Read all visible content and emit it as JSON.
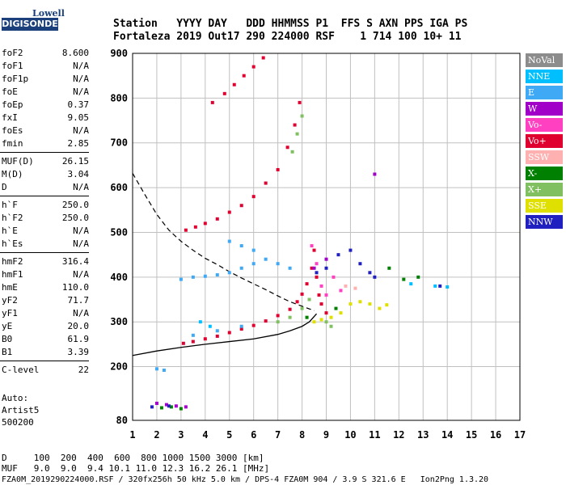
{
  "logo": {
    "top": "Lowell",
    "bottom": "DIGISONDE"
  },
  "header": {
    "line1": "Station   YYYY DAY   DDD HHMMSS P1  FFS S AXN PPS IGA PS",
    "line2": "Fortaleza 2019 Out17 290 224000 RSF    1 714 100 10+ 11"
  },
  "params": [
    {
      "k": "foF2",
      "v": "8.600"
    },
    {
      "k": "foF1",
      "v": "N/A"
    },
    {
      "k": "foF1p",
      "v": "N/A"
    },
    {
      "k": "foE",
      "v": "N/A"
    },
    {
      "k": "foEp",
      "v": "0.37"
    },
    {
      "k": "fxI",
      "v": "9.05"
    },
    {
      "k": "foEs",
      "v": "N/A"
    },
    {
      "k": "fmin",
      "v": "2.85"
    },
    {
      "k": "MUF(D)",
      "v": "26.15"
    },
    {
      "k": "M(D)",
      "v": "3.04"
    },
    {
      "k": "D",
      "v": "N/A"
    },
    {
      "k": "h`F",
      "v": "250.0"
    },
    {
      "k": "h`F2",
      "v": "250.0"
    },
    {
      "k": "h`E",
      "v": "N/A"
    },
    {
      "k": "h`Es",
      "v": "N/A"
    },
    {
      "k": "hmF2",
      "v": "316.4"
    },
    {
      "k": "hmF1",
      "v": "N/A"
    },
    {
      "k": "hmE",
      "v": "110.0"
    },
    {
      "k": "yF2",
      "v": "71.7"
    },
    {
      "k": "yF1",
      "v": "N/A"
    },
    {
      "k": "yE",
      "v": "20.0"
    },
    {
      "k": "B0",
      "v": "61.9"
    },
    {
      "k": "B1",
      "v": "3.39"
    },
    {
      "k": "C-level",
      "v": "22"
    }
  ],
  "auto": {
    "l1": "Auto:",
    "l2": "Artist5",
    "l3": "500200"
  },
  "legend": [
    {
      "label": "NoVal",
      "color": "#8c8c8c"
    },
    {
      "label": "NNE",
      "color": "#00bfff"
    },
    {
      "label": "E",
      "color": "#3fa9f5"
    },
    {
      "label": "W",
      "color": "#a000c8"
    },
    {
      "label": "Vo-",
      "color": "#ff40c0"
    },
    {
      "label": "Vo+",
      "color": "#e00030"
    },
    {
      "label": "SSW",
      "color": "#ffb0b0"
    },
    {
      "label": "X-",
      "color": "#008000"
    },
    {
      "label": "X+",
      "color": "#80c060"
    },
    {
      "label": "SSE",
      "color": "#e0e000"
    },
    {
      "label": "NNW",
      "color": "#2020c0"
    }
  ],
  "footer": {
    "l1": "D     100  200  400  600  800 1000 1500 3000 [km]",
    "l2": "MUF   9.0  9.0  9.4 10.1 11.0 12.3 16.2 26.1 [MHz]",
    "l3": "FZA0M_2019290224000.RSF / 320fx256h 50 kHz 5.0 km / DPS-4 FZA0M 904 / 3.9 S 321.6 E   Ion2Png 1.3.20"
  },
  "chart_data": {
    "type": "scatter",
    "xlim": [
      1,
      17
    ],
    "ylim": [
      80,
      900
    ],
    "xticks": [
      1,
      2,
      3,
      4,
      5,
      6,
      7,
      8,
      9,
      10,
      11,
      12,
      13,
      14,
      15,
      16,
      17
    ],
    "yticks": [
      80,
      200,
      300,
      400,
      500,
      600,
      700,
      800,
      900
    ],
    "grid": true,
    "legend_position": "right",
    "series": [
      {
        "name": "Vo+",
        "color": "#e00030",
        "points": [
          [
            3.1,
            252
          ],
          [
            3.5,
            256
          ],
          [
            4.0,
            262
          ],
          [
            4.5,
            268
          ],
          [
            5.0,
            276
          ],
          [
            5.5,
            284
          ],
          [
            6.0,
            292
          ],
          [
            6.5,
            302
          ],
          [
            7.0,
            314
          ],
          [
            7.5,
            328
          ],
          [
            7.8,
            345
          ],
          [
            8.0,
            362
          ],
          [
            8.2,
            385
          ],
          [
            8.4,
            420
          ],
          [
            8.5,
            460
          ],
          [
            3.2,
            505
          ],
          [
            3.6,
            512
          ],
          [
            4.0,
            520
          ],
          [
            4.5,
            530
          ],
          [
            5.0,
            545
          ],
          [
            5.5,
            560
          ],
          [
            6.0,
            580
          ],
          [
            6.5,
            610
          ],
          [
            7.0,
            640
          ],
          [
            7.4,
            690
          ],
          [
            7.7,
            740
          ],
          [
            7.9,
            790
          ],
          [
            4.3,
            790
          ],
          [
            4.8,
            810
          ],
          [
            5.2,
            830
          ],
          [
            5.6,
            850
          ],
          [
            6.0,
            870
          ],
          [
            6.4,
            890
          ],
          [
            8.6,
            400
          ],
          [
            8.7,
            360
          ],
          [
            8.8,
            340
          ],
          [
            9.0,
            320
          ]
        ]
      },
      {
        "name": "Vo-",
        "color": "#ff40c0",
        "points": [
          [
            8.4,
            470
          ],
          [
            8.6,
            430
          ],
          [
            8.8,
            380
          ],
          [
            9.0,
            360
          ],
          [
            9.3,
            400
          ],
          [
            9.6,
            370
          ]
        ]
      },
      {
        "name": "X+",
        "color": "#80c060",
        "points": [
          [
            7.0,
            300
          ],
          [
            7.5,
            310
          ],
          [
            8.0,
            330
          ],
          [
            8.3,
            350
          ],
          [
            7.6,
            680
          ],
          [
            7.8,
            720
          ],
          [
            8.0,
            760
          ],
          [
            9.0,
            300
          ],
          [
            9.2,
            290
          ]
        ]
      },
      {
        "name": "X-",
        "color": "#008000",
        "points": [
          [
            2.2,
            108
          ],
          [
            2.6,
            110
          ],
          [
            3.0,
            106
          ],
          [
            8.2,
            310
          ],
          [
            9.4,
            330
          ],
          [
            11.6,
            420
          ],
          [
            12.2,
            395
          ],
          [
            12.8,
            400
          ]
        ]
      },
      {
        "name": "E",
        "color": "#3fa9f5",
        "points": [
          [
            3.0,
            395
          ],
          [
            3.5,
            400
          ],
          [
            4.0,
            402
          ],
          [
            4.5,
            405
          ],
          [
            5.0,
            410
          ],
          [
            5.5,
            420
          ],
          [
            6.0,
            430
          ],
          [
            6.5,
            440
          ],
          [
            7.0,
            430
          ],
          [
            7.5,
            420
          ],
          [
            3.5,
            270
          ],
          [
            4.5,
            280
          ],
          [
            5.5,
            290
          ],
          [
            2.0,
            195
          ],
          [
            2.3,
            192
          ],
          [
            5.0,
            480
          ],
          [
            5.5,
            470
          ],
          [
            6.0,
            460
          ]
        ]
      },
      {
        "name": "NNE",
        "color": "#00bfff",
        "points": [
          [
            12.5,
            385
          ],
          [
            13.5,
            380
          ],
          [
            14.0,
            378
          ],
          [
            3.8,
            300
          ],
          [
            4.2,
            290
          ]
        ]
      },
      {
        "name": "W",
        "color": "#a000c8",
        "points": [
          [
            2.0,
            118
          ],
          [
            2.4,
            115
          ],
          [
            2.8,
            112
          ],
          [
            3.2,
            110
          ],
          [
            8.5,
            420
          ],
          [
            9.0,
            440
          ],
          [
            11.0,
            630
          ]
        ]
      },
      {
        "name": "NNW",
        "color": "#2020c0",
        "points": [
          [
            8.6,
            410
          ],
          [
            9.0,
            420
          ],
          [
            9.5,
            450
          ],
          [
            10.0,
            460
          ],
          [
            10.4,
            430
          ],
          [
            10.8,
            410
          ],
          [
            11.0,
            400
          ],
          [
            13.7,
            380
          ],
          [
            1.8,
            110
          ],
          [
            2.5,
            112
          ]
        ]
      },
      {
        "name": "SSE",
        "color": "#e0e000",
        "points": [
          [
            8.5,
            300
          ],
          [
            8.8,
            305
          ],
          [
            9.2,
            310
          ],
          [
            9.6,
            320
          ],
          [
            10.0,
            340
          ],
          [
            10.4,
            345
          ],
          [
            10.8,
            340
          ],
          [
            11.2,
            330
          ],
          [
            11.5,
            338
          ]
        ]
      },
      {
        "name": "SSW",
        "color": "#ffb0b0",
        "points": [
          [
            9.8,
            380
          ],
          [
            10.2,
            375
          ]
        ]
      }
    ],
    "profile": {
      "color": "#000000",
      "points": [
        [
          1,
          225
        ],
        [
          2,
          235
        ],
        [
          3,
          243
        ],
        [
          4,
          250
        ],
        [
          5,
          256
        ],
        [
          6,
          262
        ],
        [
          7,
          272
        ],
        [
          7.5,
          280
        ],
        [
          8,
          290
        ],
        [
          8.3,
          300
        ],
        [
          8.6,
          318
        ]
      ]
    },
    "muf_curve": {
      "color": "#000000",
      "dashed": true,
      "points": [
        [
          1,
          632
        ],
        [
          1.5,
          585
        ],
        [
          2,
          540
        ],
        [
          2.5,
          505
        ],
        [
          3,
          480
        ],
        [
          3.5,
          460
        ],
        [
          4,
          442
        ],
        [
          4.5,
          428
        ],
        [
          5,
          412
        ],
        [
          5.5,
          398
        ],
        [
          6,
          385
        ],
        [
          6.5,
          372
        ],
        [
          7,
          358
        ],
        [
          7.5,
          345
        ],
        [
          8,
          335
        ],
        [
          8.5,
          325
        ]
      ]
    }
  }
}
